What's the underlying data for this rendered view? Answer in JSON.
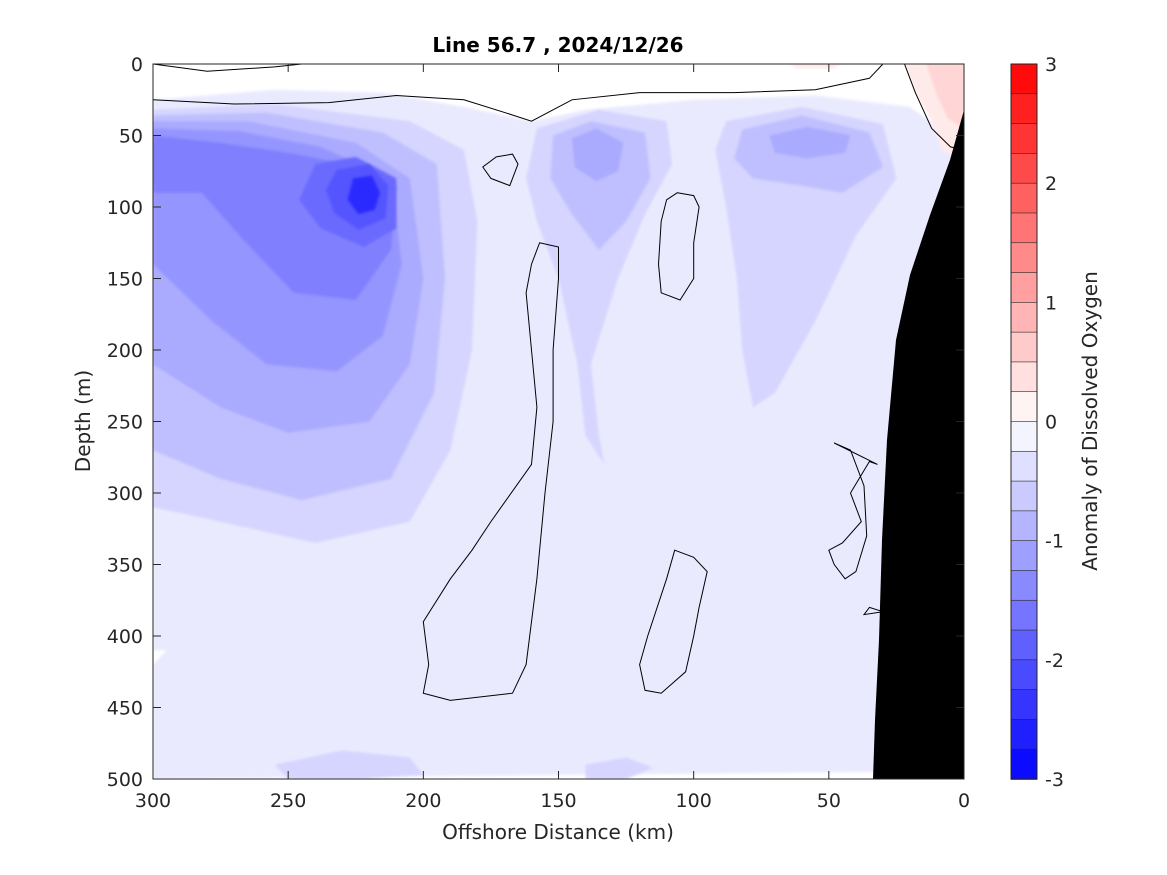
{
  "chart_data": {
    "type": "heatmap",
    "title": "Line 56.7 , 2024/12/26",
    "xlabel": "Offshore Distance (km)",
    "ylabel": "Depth (m)",
    "xlim": [
      300,
      0
    ],
    "ylim": [
      0,
      500
    ],
    "x_reversed": true,
    "y_reversed": true,
    "xticks": [
      300,
      250,
      200,
      150,
      100,
      50,
      0
    ],
    "yticks": [
      0,
      50,
      100,
      150,
      200,
      250,
      300,
      350,
      400,
      450,
      500
    ],
    "colorbar": {
      "label": "Anomaly of Dissolved Oxygen",
      "range": [
        -3,
        3
      ],
      "step": 0.25,
      "ticks": [
        3,
        2,
        1,
        0,
        -1,
        -2,
        -3
      ],
      "negative_color": "#0000ff",
      "positive_color": "#ff0000",
      "zero_color": "#ffffff"
    },
    "bathymetry_color": "#000000",
    "features": [
      {
        "kind": "minimum",
        "x": 222,
        "y": 90,
        "value": -2.5
      },
      {
        "kind": "minimum",
        "x": 290,
        "y": 70,
        "value": -1.5
      },
      {
        "kind": "minimum",
        "x": 135,
        "y": 60,
        "value": -1.0
      },
      {
        "kind": "minimum",
        "x": 60,
        "y": 50,
        "value": -1.0
      },
      {
        "kind": "maximum",
        "x": 8,
        "y": 25,
        "value": 0.5
      }
    ]
  }
}
